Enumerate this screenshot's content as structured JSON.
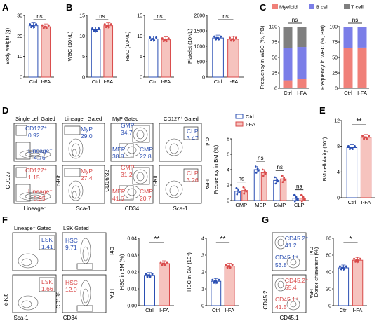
{
  "colors": {
    "ctrl": "#2b4fb3",
    "ifa": "#d94a4a",
    "ifa_fill": "#f6c3be",
    "myeloid": "#f08079",
    "bcell": "#7b7ee8",
    "tcell": "#7f7f7f"
  },
  "panels": {
    "A": {
      "letter": "A",
      "ylabel": "Body weight (g)",
      "ylim": [
        0,
        30
      ],
      "ticks": [
        "0",
        "10",
        "20",
        "30"
      ],
      "categories": [
        "Ctrl",
        "I-FA"
      ],
      "values": [
        25,
        24.5
      ],
      "sig": "ns"
    },
    "B": {
      "letter": "B",
      "plots": [
        {
          "ylabel": "WBC (10⁹/L)",
          "ylim": [
            0,
            15
          ],
          "ticks": [
            "0",
            "5",
            "10",
            "15"
          ],
          "categories": [
            "Ctrl",
            "I-FA"
          ],
          "values": [
            11.5,
            12.5
          ],
          "sig": "ns"
        },
        {
          "ylabel": "RBC (10¹²/L)",
          "ylim": [
            0,
            15
          ],
          "ticks": [
            "0",
            "5",
            "10",
            "15"
          ],
          "categories": [
            "Ctrl",
            "I-FA"
          ],
          "values": [
            9.3,
            9.1
          ],
          "sig": "ns"
        },
        {
          "ylabel": "Platelet (10⁹/L)",
          "ylim": [
            0,
            2000
          ],
          "ticks": [
            "0",
            "500",
            "1000",
            "1500",
            "2000"
          ],
          "categories": [
            "Ctrl",
            "I-FA"
          ],
          "values": [
            1270,
            1230
          ],
          "sig": "ns"
        }
      ]
    },
    "C": {
      "letter": "C",
      "legend": [
        "Myeloid",
        "B cell",
        "T cell"
      ],
      "ylim": [
        0,
        100
      ],
      "ticks": [
        "0",
        "25",
        "50",
        "75",
        "100"
      ],
      "categories": [
        "Ctrl",
        "I-FA"
      ],
      "plots": [
        {
          "ylabel": "Frequency in WBC (%, PB)",
          "myeloid": [
            13,
            15
          ],
          "bcell": [
            52,
            52
          ],
          "tcell": [
            35,
            33
          ],
          "sig": "ns"
        },
        {
          "ylabel": "Frequency in WBC (%, BM)",
          "myeloid": [
            65,
            66
          ],
          "bcell": [
            34,
            33
          ],
          "tcell": [
            1,
            1
          ],
          "sig": "ns"
        }
      ]
    },
    "D": {
      "letter": "D",
      "flow": {
        "gates": [
          "Single cell Gated",
          "Lineage⁻ Gated",
          "MyP Gated",
          "CD127⁺ Gated"
        ],
        "row_labels": [
          "Ctrl",
          "I-FA"
        ],
        "ctrl": {
          "cd127_name": "CD127⁺",
          "cd127_val": "0.92",
          "lin_name": "Lineage⁻",
          "lin_val": "4.76",
          "myp_name": "MyP",
          "myp_val": "29.0",
          "gmp_name": "GMP",
          "gmp_val": "34.7",
          "mep_name": "MEP",
          "mep_val": "38.8",
          "cmp_name": "CMP",
          "cmp_val": "22.8",
          "clp_name": "CLP",
          "clp_val": "3.47"
        },
        "ifa": {
          "cd127_name": "CD127⁺",
          "cd127_val": "1.15",
          "lin_name": "Lineage⁻",
          "lin_val": "5.95",
          "myp_name": "MyP",
          "myp_val": "27.4",
          "gmp_name": "GMP",
          "gmp_val": "31.2",
          "mep_name": "MEP",
          "mep_val": "41.6",
          "cmp_name": "CMP",
          "cmp_val": "20.7",
          "clp_name": "CLP",
          "clp_val": "3.26"
        },
        "axes": {
          "col1_y": "CD127",
          "col1_x": "Lineage⁻",
          "col2_y": "c-Kit",
          "col2_x": "Sca-1",
          "col3_y": "CD16/32",
          "col3_x": "CD34",
          "col4_y": "c-Kit",
          "col4_x": "Sca-1"
        }
      },
      "chart": {
        "legend": [
          "Ctrl",
          "I-FA"
        ],
        "ylabel": "Frequency in BM (%)",
        "ylim": [
          0,
          8
        ],
        "ticks": [
          "0",
          "2",
          "4",
          "6",
          "8"
        ],
        "categories": [
          "CMP",
          "MEP",
          "GMP",
          "CLP"
        ],
        "ctrl": [
          1.2,
          4.0,
          2.6,
          0.3
        ],
        "ifa": [
          1.3,
          3.6,
          2.8,
          0.3
        ],
        "sig": [
          "ns",
          "ns",
          "ns",
          "ns"
        ]
      }
    },
    "E": {
      "letter": "E",
      "ylabel": "BM cellularity (10⁷)",
      "ylim": [
        0,
        12
      ],
      "ticks": [
        "0",
        "4",
        "8",
        "12"
      ],
      "categories": [
        "Ctrl",
        "I-FA"
      ],
      "values": [
        7.8,
        9.4
      ],
      "sig": "**"
    },
    "F": {
      "letter": "F",
      "flow": {
        "gates": [
          "Lineage⁻ Gated",
          "LSK Gated"
        ],
        "row_labels": [
          "Ctrl",
          "I-FA"
        ],
        "ctrl": {
          "lsk_name": "LSK",
          "lsk_val": "1.41",
          "hsc_name": "HSC",
          "hsc_val": "9.71"
        },
        "ifa": {
          "lsk_name": "LSK",
          "lsk_val": "1.66",
          "hsc_name": "HSC",
          "hsc_val": "12.0"
        },
        "axes": {
          "col1_y": "c-Kit",
          "col1_x": "Sca-1",
          "col2_y": "CD135",
          "col2_x": "CD34"
        }
      },
      "plots": [
        {
          "ylabel": "HSC in BM (%)",
          "ylim": [
            0,
            0.04
          ],
          "ticks": [
            "0.00",
            "0.01",
            "0.02",
            "0.03",
            "0.04"
          ],
          "categories": [
            "Ctrl",
            "I-FA"
          ],
          "values": [
            0.018,
            0.025
          ],
          "sig": "**"
        },
        {
          "ylabel": "HSC in BM (10⁴)",
          "ylim": [
            0,
            4
          ],
          "ticks": [
            "0",
            "1",
            "2",
            "3",
            "4"
          ],
          "categories": [
            "Ctrl",
            "I-FA"
          ],
          "values": [
            1.45,
            2.35
          ],
          "sig": "**"
        }
      ]
    },
    "G": {
      "letter": "G",
      "flow": {
        "row_labels": [
          "Ctrl",
          "I-FA"
        ],
        "ctrl": {
          "d2_name": "CD45.2⁺",
          "d2_val": "41.2",
          "d1_name": "CD45.1⁺",
          "d1_val": "53.8"
        },
        "ifa": {
          "d2_name": "CD45.2⁺",
          "d2_val": "55.4",
          "d1_name": "CD45.1⁺",
          "d1_val": "41.5"
        },
        "axes": {
          "y": "CD45.2",
          "x": "CD45.1"
        }
      },
      "chart": {
        "ylabel": "Donor chimerism (%)",
        "ylim": [
          0,
          80
        ],
        "ticks": [
          "0",
          "20",
          "40",
          "60",
          "80"
        ],
        "categories": [
          "Ctrl",
          "I-FA"
        ],
        "values": [
          45,
          54
        ],
        "sig": "*"
      }
    }
  }
}
